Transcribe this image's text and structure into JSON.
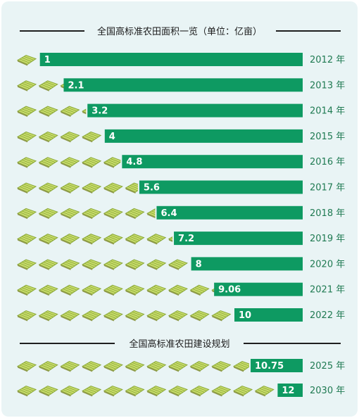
{
  "section1_title": "全国高标准农田面积一览（单位：亿亩）",
  "section2_title": "全国高标准农田建设规划",
  "colors": {
    "bar": "#0e9a62",
    "year_text": "#1f7a52",
    "field_fill": "#c8dc6a",
    "field_stroke": "#8aa83a"
  },
  "icon": "farmland-plot-icon",
  "chart_data": [
    {
      "type": "bar",
      "orientation": "horizontal",
      "title": "全国高标准农田面积一览（单位：亿亩）",
      "categories": [
        "2012 年",
        "2013 年",
        "2014 年",
        "2015 年",
        "2016 年",
        "2017 年",
        "2018 年",
        "2019 年",
        "2020 年",
        "2021 年",
        "2022 年"
      ],
      "values": [
        1,
        2.1,
        3.2,
        4,
        4.8,
        5.6,
        6.4,
        7.2,
        8,
        9.06,
        10
      ],
      "labels": [
        "1",
        "2.1",
        "3.2",
        "4",
        "4.8",
        "5.6",
        "6.4",
        "7.2",
        "8",
        "9.06",
        "10"
      ],
      "xlim": [
        0,
        13
      ]
    },
    {
      "type": "bar",
      "orientation": "horizontal",
      "title": "全国高标准农田建设规划",
      "categories": [
        "2025 年",
        "2030 年"
      ],
      "values": [
        10.75,
        12
      ],
      "labels": [
        "10.75",
        "12"
      ],
      "xlim": [
        0,
        13
      ]
    }
  ]
}
